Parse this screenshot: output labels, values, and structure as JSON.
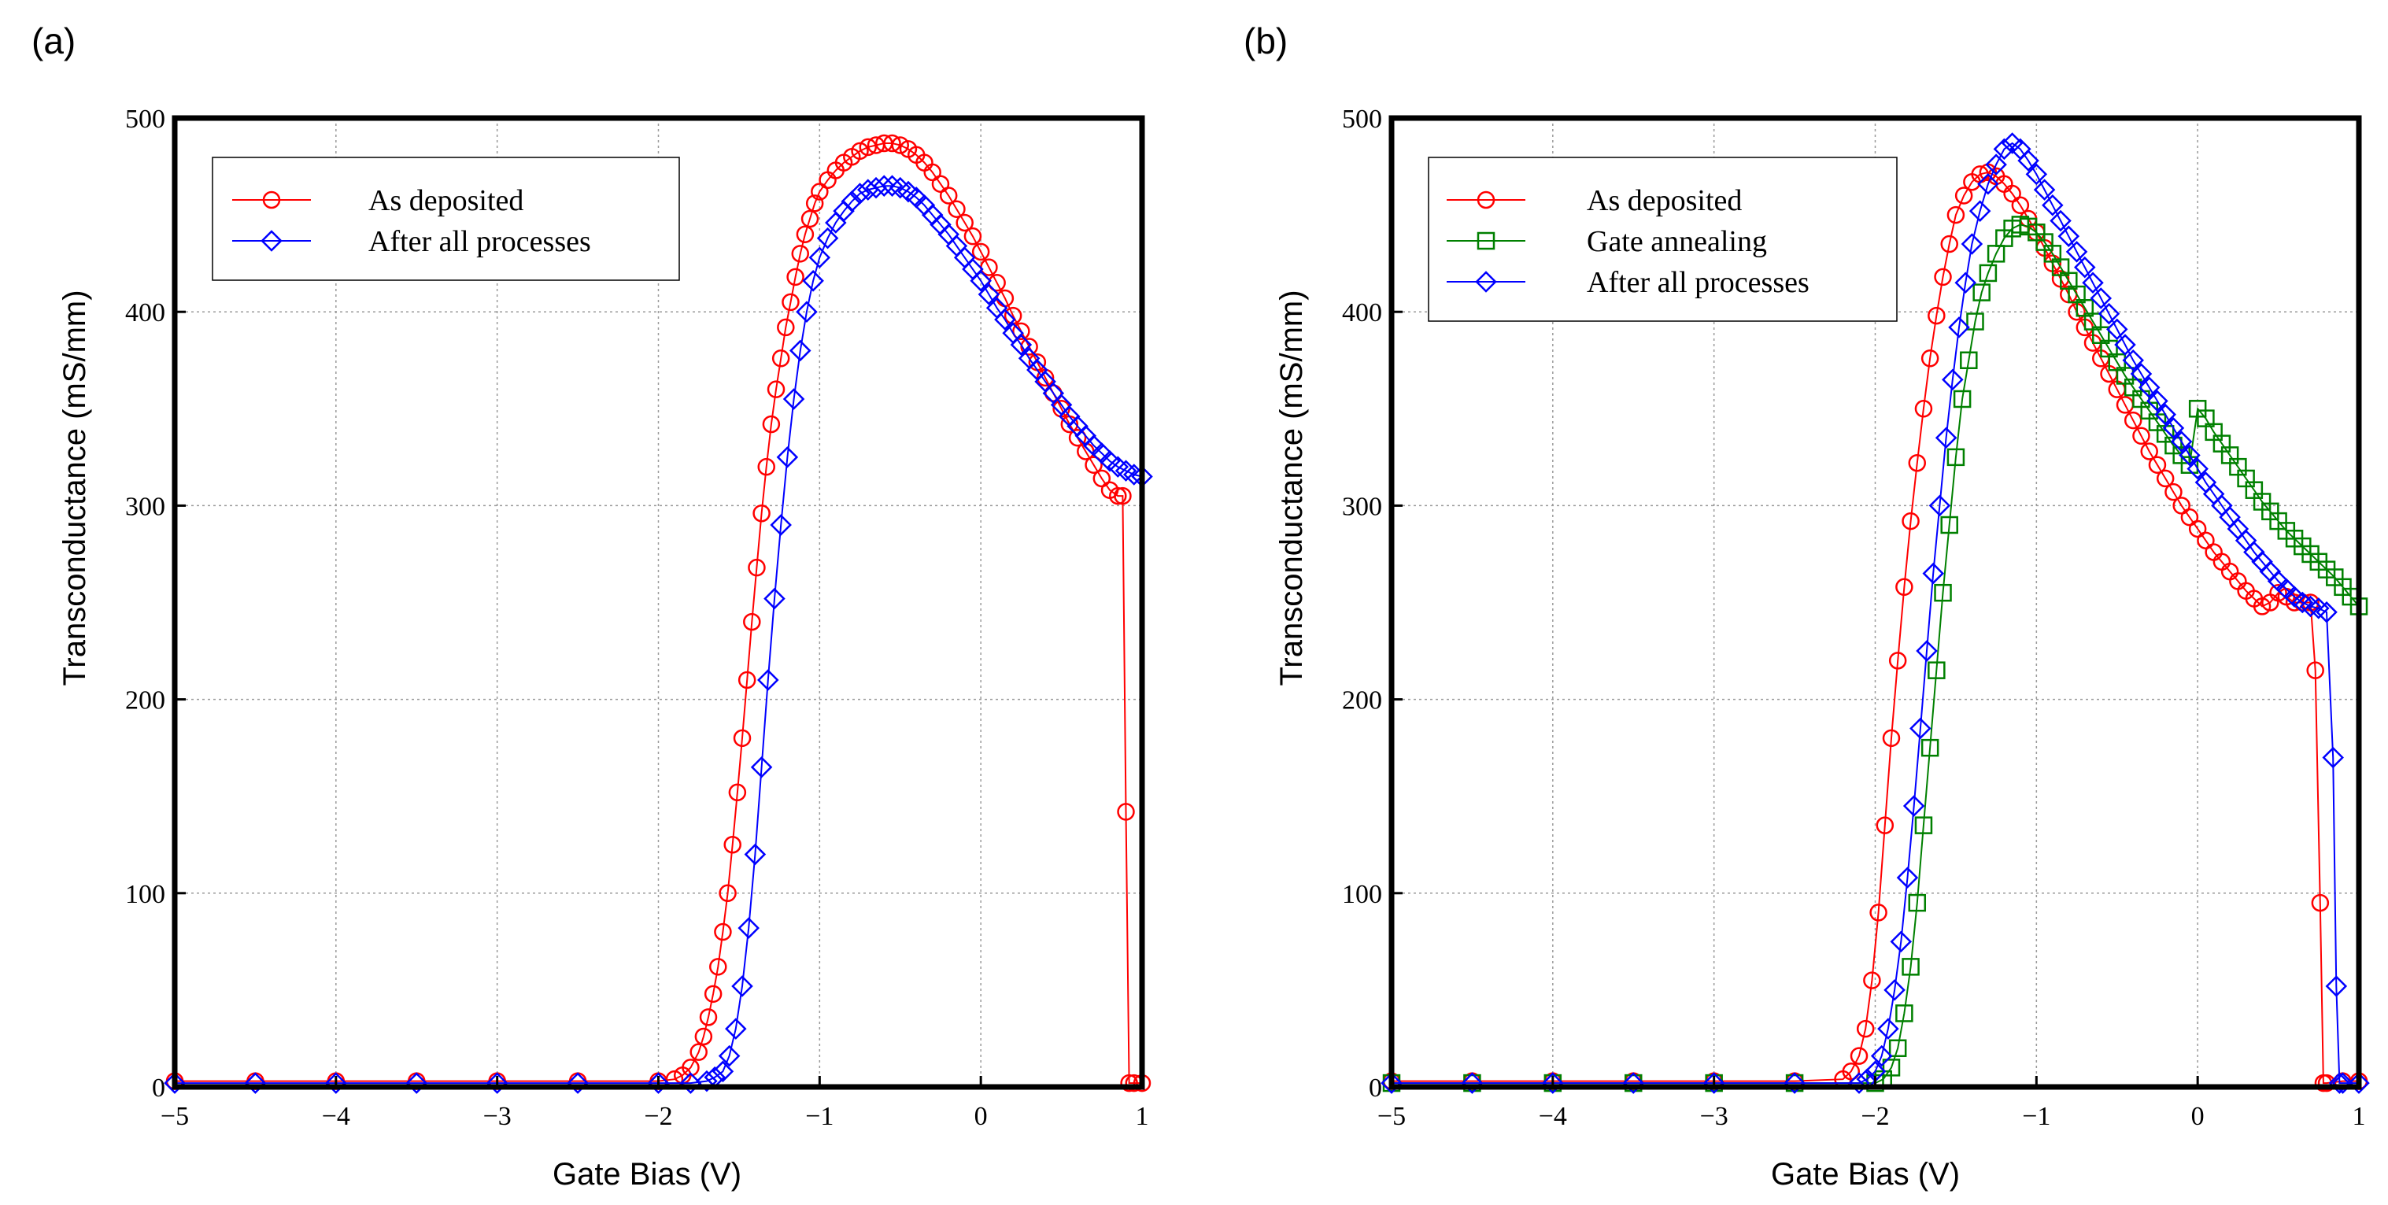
{
  "chart_data": [
    {
      "panel_label": "(a)",
      "type": "scatter",
      "xlabel": "Gate Bias (V)",
      "ylabel": "Transconductance (mS/mm)",
      "xlim": [
        -5,
        1
      ],
      "ylim": [
        0,
        500
      ],
      "xticks": [
        -5,
        -4,
        -3,
        -2,
        -1,
        0,
        1
      ],
      "xtick_labels": [
        "−5",
        "−4",
        "−3",
        "−2",
        "−1",
        "0",
        "1"
      ],
      "yticks": [
        0,
        100,
        200,
        300,
        400,
        500
      ],
      "ytick_labels": [
        "0",
        "100",
        "200",
        "300",
        "400",
        "500"
      ],
      "grid": true,
      "legend_position": "top-left",
      "series": [
        {
          "name": "As deposited",
          "color": "#ff0000",
          "marker": "circle",
          "x": [
            -5.0,
            -4.5,
            -4.0,
            -3.5,
            -3.0,
            -2.5,
            -2.0,
            -1.9,
            -1.85,
            -1.8,
            -1.75,
            -1.72,
            -1.69,
            -1.66,
            -1.63,
            -1.6,
            -1.57,
            -1.54,
            -1.51,
            -1.48,
            -1.45,
            -1.42,
            -1.39,
            -1.36,
            -1.33,
            -1.3,
            -1.27,
            -1.24,
            -1.21,
            -1.18,
            -1.15,
            -1.12,
            -1.09,
            -1.06,
            -1.03,
            -1.0,
            -0.95,
            -0.9,
            -0.85,
            -0.8,
            -0.75,
            -0.7,
            -0.65,
            -0.6,
            -0.55,
            -0.5,
            -0.45,
            -0.4,
            -0.35,
            -0.3,
            -0.25,
            -0.2,
            -0.15,
            -0.1,
            -0.05,
            0.0,
            0.05,
            0.1,
            0.15,
            0.2,
            0.25,
            0.3,
            0.35,
            0.4,
            0.45,
            0.5,
            0.55,
            0.6,
            0.65,
            0.7,
            0.75,
            0.8,
            0.85,
            0.88,
            0.9,
            0.92,
            0.95,
            1.0
          ],
          "y": [
            3,
            3,
            3,
            3,
            3,
            3,
            3,
            4,
            6,
            10,
            18,
            26,
            36,
            48,
            62,
            80,
            100,
            125,
            152,
            180,
            210,
            240,
            268,
            296,
            320,
            342,
            360,
            376,
            392,
            405,
            418,
            430,
            440,
            448,
            456,
            462,
            468,
            473,
            477,
            480,
            483,
            485,
            486,
            487,
            487,
            486,
            484,
            481,
            477,
            472,
            466,
            460,
            453,
            446,
            439,
            431,
            423,
            415,
            407,
            398,
            390,
            382,
            374,
            366,
            358,
            350,
            342,
            335,
            328,
            321,
            314,
            308,
            305,
            305,
            142,
            2,
            2,
            2
          ]
        },
        {
          "name": "After all processes",
          "color": "#0000ff",
          "marker": "diamond",
          "x": [
            -5.0,
            -4.5,
            -4.0,
            -3.5,
            -3.0,
            -2.5,
            -2.0,
            -1.8,
            -1.7,
            -1.65,
            -1.6,
            -1.56,
            -1.52,
            -1.48,
            -1.44,
            -1.4,
            -1.36,
            -1.32,
            -1.28,
            -1.24,
            -1.2,
            -1.16,
            -1.12,
            -1.08,
            -1.04,
            -1.0,
            -0.95,
            -0.9,
            -0.85,
            -0.8,
            -0.75,
            -0.7,
            -0.65,
            -0.6,
            -0.55,
            -0.5,
            -0.45,
            -0.4,
            -0.35,
            -0.3,
            -0.25,
            -0.2,
            -0.15,
            -0.1,
            -0.05,
            0.0,
            0.05,
            0.1,
            0.15,
            0.2,
            0.25,
            0.3,
            0.35,
            0.4,
            0.45,
            0.5,
            0.55,
            0.6,
            0.65,
            0.7,
            0.75,
            0.8,
            0.85,
            0.9,
            0.95,
            1.0
          ],
          "y": [
            2,
            2,
            2,
            2,
            2,
            2,
            2,
            2,
            3,
            5,
            8,
            16,
            30,
            52,
            82,
            120,
            165,
            210,
            252,
            290,
            325,
            355,
            380,
            400,
            416,
            428,
            438,
            446,
            452,
            457,
            461,
            463,
            464,
            465,
            465,
            464,
            462,
            459,
            455,
            450,
            445,
            440,
            434,
            428,
            422,
            416,
            409,
            402,
            396,
            389,
            383,
            376,
            370,
            364,
            358,
            352,
            346,
            341,
            336,
            331,
            327,
            323,
            320,
            318,
            316,
            315
          ]
        }
      ]
    },
    {
      "panel_label": "(b)",
      "type": "scatter",
      "xlabel": "Gate Bias (V)",
      "ylabel": "Transconductance (mS/mm)",
      "xlim": [
        -5,
        1
      ],
      "ylim": [
        0,
        500
      ],
      "xticks": [
        -5,
        -4,
        -3,
        -2,
        -1,
        0,
        1
      ],
      "xtick_labels": [
        "−5",
        "−4",
        "−3",
        "−2",
        "−1",
        "0",
        "1"
      ],
      "yticks": [
        0,
        100,
        200,
        300,
        400,
        500
      ],
      "ytick_labels": [
        "0",
        "100",
        "200",
        "300",
        "400",
        "500"
      ],
      "grid": true,
      "legend_position": "top-left",
      "series": [
        {
          "name": "As deposited",
          "color": "#ff0000",
          "marker": "circle",
          "x": [
            -5.0,
            -4.5,
            -4.0,
            -3.5,
            -3.0,
            -2.5,
            -2.2,
            -2.15,
            -2.1,
            -2.06,
            -2.02,
            -1.98,
            -1.94,
            -1.9,
            -1.86,
            -1.82,
            -1.78,
            -1.74,
            -1.7,
            -1.66,
            -1.62,
            -1.58,
            -1.54,
            -1.5,
            -1.45,
            -1.4,
            -1.35,
            -1.3,
            -1.25,
            -1.2,
            -1.15,
            -1.1,
            -1.05,
            -1.0,
            -0.95,
            -0.9,
            -0.85,
            -0.8,
            -0.75,
            -0.7,
            -0.65,
            -0.6,
            -0.55,
            -0.5,
            -0.45,
            -0.4,
            -0.35,
            -0.3,
            -0.25,
            -0.2,
            -0.15,
            -0.1,
            -0.05,
            0.0,
            0.05,
            0.1,
            0.15,
            0.2,
            0.25,
            0.3,
            0.35,
            0.4,
            0.45,
            0.5,
            0.55,
            0.6,
            0.65,
            0.7,
            0.73,
            0.76,
            0.78,
            0.8,
            0.9,
            1.0
          ],
          "y": [
            3,
            3,
            3,
            3,
            3,
            3,
            4,
            8,
            16,
            30,
            55,
            90,
            135,
            180,
            220,
            258,
            292,
            322,
            350,
            376,
            398,
            418,
            435,
            450,
            460,
            467,
            471,
            472,
            470,
            466,
            461,
            455,
            448,
            441,
            433,
            425,
            417,
            409,
            400,
            392,
            384,
            376,
            368,
            360,
            352,
            344,
            336,
            328,
            321,
            314,
            307,
            300,
            294,
            288,
            282,
            276,
            271,
            266,
            261,
            256,
            252,
            248,
            250,
            255,
            253,
            250,
            250,
            250,
            215,
            95,
            2,
            2,
            3,
            3
          ]
        },
        {
          "name": "Gate annealing",
          "color": "#008000",
          "marker": "square",
          "x": [
            -5.0,
            -4.5,
            -4.0,
            -3.5,
            -3.0,
            -2.5,
            -2.0,
            -1.95,
            -1.9,
            -1.86,
            -1.82,
            -1.78,
            -1.74,
            -1.7,
            -1.66,
            -1.62,
            -1.58,
            -1.54,
            -1.5,
            -1.46,
            -1.42,
            -1.38,
            -1.34,
            -1.3,
            -1.25,
            -1.2,
            -1.15,
            -1.1,
            -1.05,
            -1.0,
            -0.95,
            -0.9,
            -0.85,
            -0.8,
            -0.75,
            -0.7,
            -0.65,
            -0.6,
            -0.55,
            -0.5,
            -0.45,
            -0.4,
            -0.35,
            -0.3,
            -0.25,
            -0.2,
            -0.15,
            -0.1,
            -0.05,
            0.0,
            0.05,
            0.1,
            0.15,
            0.2,
            0.25,
            0.3,
            0.35,
            0.4,
            0.45,
            0.5,
            0.55,
            0.6,
            0.65,
            0.7,
            0.75,
            0.8,
            0.85,
            0.9,
            0.95,
            1.0
          ],
          "y": [
            2,
            2,
            2,
            2,
            2,
            2,
            2,
            4,
            10,
            20,
            38,
            62,
            95,
            135,
            175,
            215,
            255,
            290,
            325,
            355,
            375,
            395,
            410,
            420,
            430,
            438,
            443,
            445,
            444,
            441,
            436,
            430,
            423,
            416,
            409,
            402,
            395,
            388,
            381,
            374,
            367,
            361,
            355,
            349,
            343,
            337,
            331,
            326,
            321,
            350,
            345,
            338,
            332,
            326,
            320,
            314,
            308,
            302,
            297,
            292,
            287,
            283,
            279,
            275,
            271,
            267,
            263,
            258,
            253,
            248
          ]
        },
        {
          "name": "After all processes",
          "color": "#0000ff",
          "marker": "diamond",
          "x": [
            -5.0,
            -4.5,
            -4.0,
            -3.5,
            -3.0,
            -2.5,
            -2.1,
            -2.05,
            -2.0,
            -1.96,
            -1.92,
            -1.88,
            -1.84,
            -1.8,
            -1.76,
            -1.72,
            -1.68,
            -1.64,
            -1.6,
            -1.56,
            -1.52,
            -1.48,
            -1.44,
            -1.4,
            -1.35,
            -1.3,
            -1.25,
            -1.2,
            -1.15,
            -1.1,
            -1.05,
            -1.0,
            -0.95,
            -0.9,
            -0.85,
            -0.8,
            -0.75,
            -0.7,
            -0.65,
            -0.6,
            -0.55,
            -0.5,
            -0.45,
            -0.4,
            -0.35,
            -0.3,
            -0.25,
            -0.2,
            -0.15,
            -0.1,
            -0.05,
            0.0,
            0.05,
            0.1,
            0.15,
            0.2,
            0.25,
            0.3,
            0.35,
            0.4,
            0.45,
            0.5,
            0.55,
            0.6,
            0.65,
            0.7,
            0.75,
            0.8,
            0.84,
            0.86,
            0.88,
            0.9,
            1.0
          ],
          "y": [
            2,
            2,
            2,
            2,
            2,
            2,
            2,
            4,
            8,
            16,
            30,
            50,
            75,
            108,
            145,
            185,
            225,
            265,
            300,
            335,
            365,
            392,
            415,
            435,
            452,
            466,
            476,
            484,
            487,
            484,
            478,
            471,
            463,
            455,
            447,
            439,
            431,
            423,
            415,
            407,
            399,
            391,
            383,
            375,
            368,
            361,
            354,
            347,
            340,
            333,
            326,
            319,
            312,
            306,
            300,
            294,
            288,
            282,
            276,
            271,
            266,
            261,
            257,
            253,
            250,
            248,
            247,
            245,
            170,
            52,
            2,
            2,
            2
          ]
        }
      ]
    }
  ]
}
